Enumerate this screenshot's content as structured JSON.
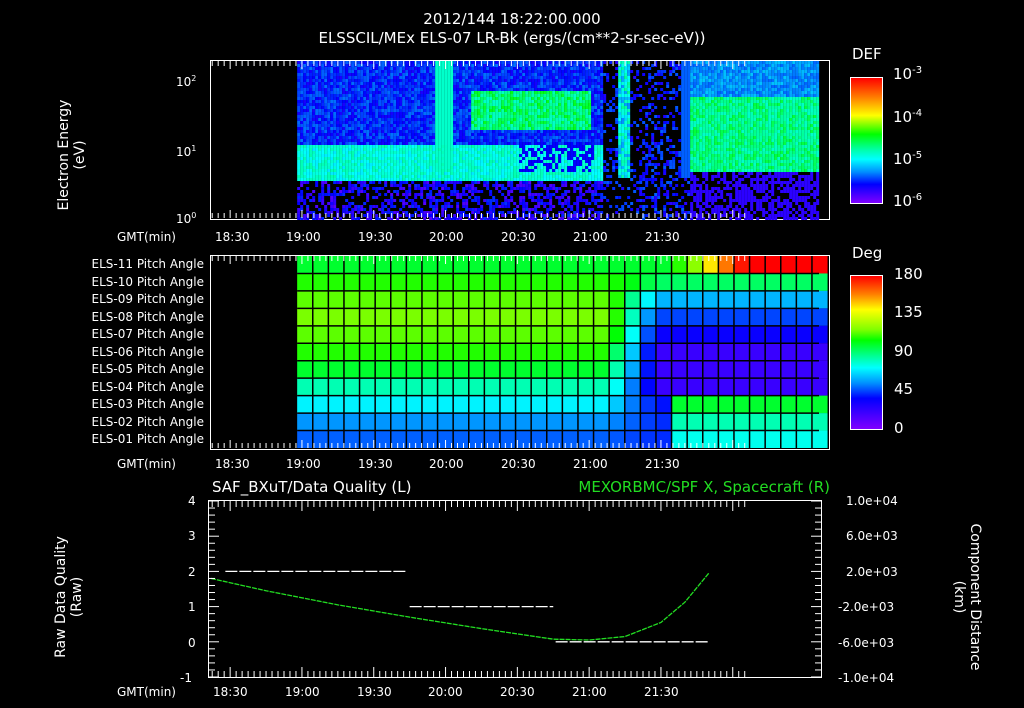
{
  "header": {
    "timestamp": "2012/144 18:22:00.000",
    "subtitle": "ELSSCIL/MEx ELS-07 LR-Bk  (ergs/(cm**2-sr-sec-eV))"
  },
  "time_axis": {
    "label": "GMT(min)",
    "ticks": [
      "18:30",
      "19:00",
      "19:30",
      "20:00",
      "20:30",
      "21:00",
      "21:30"
    ]
  },
  "panel1": {
    "ylabel_line1": "Electron Energy",
    "ylabel_line2": "(eV)",
    "yticks": [
      {
        "base": "10",
        "exp": "2"
      },
      {
        "base": "10",
        "exp": "1"
      },
      {
        "base": "10",
        "exp": "0"
      }
    ],
    "colorbar": {
      "title": "DEF",
      "ticks": [
        {
          "base": "10",
          "exp": "-3"
        },
        {
          "base": "10",
          "exp": "-4"
        },
        {
          "base": "10",
          "exp": "-5"
        },
        {
          "base": "10",
          "exp": "-6"
        }
      ]
    }
  },
  "panel2": {
    "row_labels": [
      "ELS-11 Pitch Angle",
      "ELS-10 Pitch Angle",
      "ELS-09 Pitch Angle",
      "ELS-08 Pitch Angle",
      "ELS-07 Pitch Angle",
      "ELS-06 Pitch Angle",
      "ELS-05 Pitch Angle",
      "ELS-04 Pitch Angle",
      "ELS-03 Pitch Angle",
      "ELS-02 Pitch Angle",
      "ELS-01 Pitch Angle"
    ],
    "colorbar": {
      "title": "Deg",
      "ticks": [
        "180",
        "135",
        "90",
        "45",
        "0"
      ]
    }
  },
  "panel3": {
    "left_title": "SAF_BXuT/Data Quality (L)",
    "right_title": "MEXORBMC/SPF X, Spacecraft (R)",
    "right_title_color": "#22dd22",
    "ylabel_left_line1": "Raw Data Quality",
    "ylabel_left_line2": "(Raw)",
    "ylabel_right_line1": "Component Distance",
    "ylabel_right_line2": "(km)",
    "yticks_left": [
      "4",
      "3",
      "2",
      "1",
      "0",
      "-1"
    ],
    "yticks_right": [
      "1.0e+04",
      "6.0e+03",
      "2.0e+03",
      "-2.0e+03",
      "-6.0e+03",
      "-1.0e+04"
    ]
  },
  "chart_data": [
    {
      "type": "heatmap",
      "title": "ELSSCIL/MEx ELS-07 LR-Bk (ergs/(cm**2-sr-sec-eV))",
      "xlabel": "GMT(min)",
      "ylabel": "Electron Energy (eV)",
      "x_range": [
        "18:22",
        "21:50"
      ],
      "y_scale": "log",
      "ylim": [
        1,
        200
      ],
      "colorbar": {
        "label": "DEF",
        "scale": "log",
        "range": [
          1e-06,
          0.001
        ]
      },
      "notes": "No data before ~18:58; dense band 3-10 eV until ~21:05; enhanced flux ~20:35-21:00 at 20-80 eV; sparse data ~21:10-21:20; strong band 5-50 eV after ~21:42"
    },
    {
      "type": "heatmap",
      "title": "Pitch Angle",
      "xlabel": "GMT(min)",
      "rows": [
        "ELS-11",
        "ELS-10",
        "ELS-09",
        "ELS-08",
        "ELS-07",
        "ELS-06",
        "ELS-05",
        "ELS-04",
        "ELS-03",
        "ELS-02",
        "ELS-01"
      ],
      "colorbar": {
        "label": "Deg",
        "range": [
          0,
          180
        ]
      },
      "typical_values_deg_19_00_to_21_00": [
        100,
        110,
        120,
        125,
        120,
        110,
        100,
        85,
        70,
        55,
        45
      ],
      "notes": "No data before ~18:58; after ~21:10 central rows drop to 20-40 deg, ELS-11 reaches ~160 deg near 21:45"
    },
    {
      "type": "line",
      "title": "SAF_BXuT/Data Quality (L) & MEXORBMC/SPF X, Spacecraft (R)",
      "xlabel": "GMT(min)",
      "series": [
        {
          "name": "Data Quality (L)",
          "axis": "left",
          "color": "#ffffff",
          "x": [
            "18:28",
            "19:44",
            "19:45",
            "20:45",
            "20:46",
            "21:50"
          ],
          "values": [
            2,
            2,
            1,
            1,
            0,
            0
          ]
        },
        {
          "name": "SPF X Spacecraft (R)",
          "axis": "right",
          "color": "#22dd22",
          "x": [
            "18:22",
            "18:45",
            "19:15",
            "19:45",
            "20:15",
            "20:45",
            "21:00",
            "21:15",
            "21:30",
            "21:40",
            "21:50"
          ],
          "values": [
            1200,
            -200,
            -1800,
            -3200,
            -4500,
            -5700,
            -5800,
            -5400,
            -3800,
            -1500,
            1800
          ]
        }
      ],
      "ylim_left": [
        -1,
        4
      ],
      "ylim_right": [
        -10000,
        10000
      ],
      "ylabel_left": "Raw Data Quality (Raw)",
      "ylabel_right": "Component Distance (km)"
    }
  ]
}
